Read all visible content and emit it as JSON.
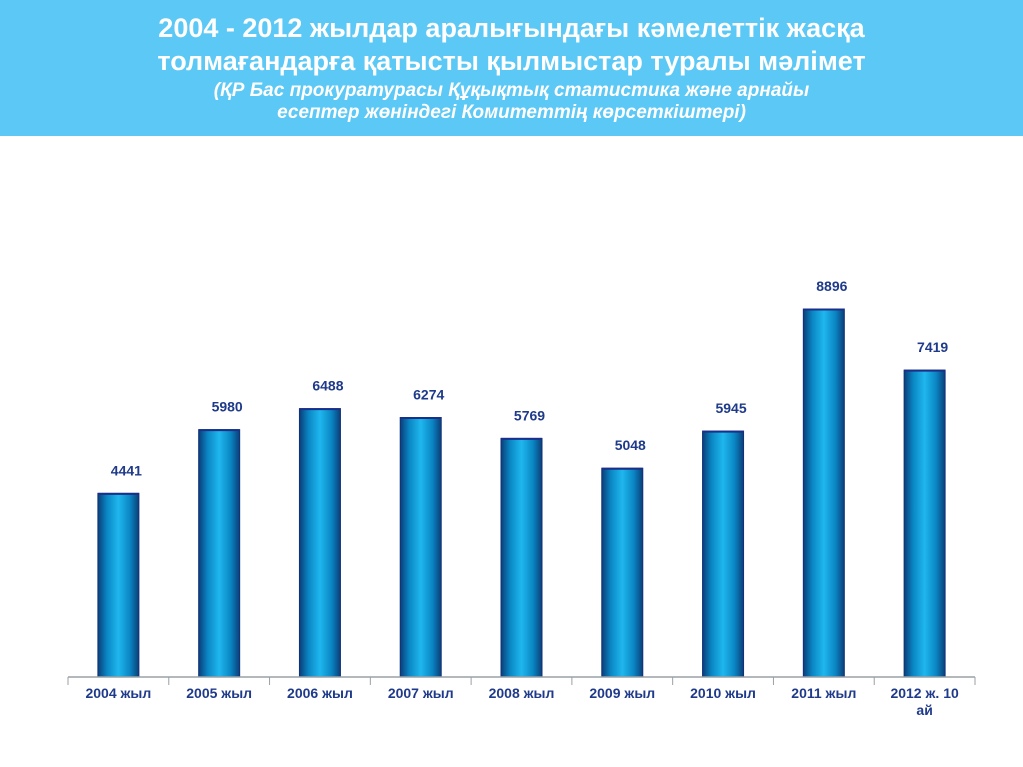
{
  "header": {
    "title_line1": "2004 - 2012 жылдар аралығындағы кәмелеттік жасқа",
    "title_line2": "толмағандарға  қатысты қылмыстар туралы  мәлімет",
    "subtitle_line1": "(ҚР Бас прокуратурасы Құқықтық статистика және арнайы",
    "subtitle_line2": "есептер жөніндегі Комитеттің  көрсеткіштері)",
    "background_color": "#5cc8f5"
  },
  "chart_data": {
    "type": "bar",
    "categories": [
      "2004 жыл",
      "2005 жыл",
      "2006 жыл",
      "2007 жыл",
      "2008 жыл",
      "2009 жыл",
      "2010 жыл",
      "2011 жыл",
      "2012 ж. 10 ай"
    ],
    "values": [
      4441,
      5980,
      6488,
      6274,
      5769,
      5048,
      5945,
      8896,
      7419
    ],
    "value_labels": [
      "4441",
      "5980",
      "6488",
      "6274",
      "5769",
      "5048",
      "5945",
      "8896",
      "7419"
    ],
    "title": "",
    "xlabel": "",
    "ylabel": "",
    "ylim": [
      0,
      9000
    ],
    "grid": false,
    "legend": "none",
    "bar_color": "#0a9ad8",
    "bar_edge_color": "#12307a",
    "label_color": "#1f3a8a",
    "axis_color": "#9aa0a6"
  }
}
